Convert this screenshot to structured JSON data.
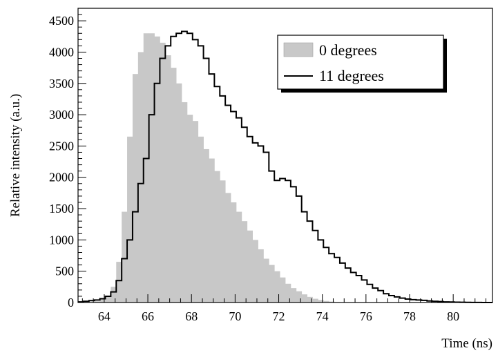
{
  "chart_data": {
    "type": "histogram",
    "xlabel": "Time (ns)",
    "ylabel": "Relative intensity (a.u.)",
    "xlim": [
      62.8,
      81.8
    ],
    "ylim": [
      0,
      4700
    ],
    "bin_width": 0.25,
    "x_ticks": [
      64,
      66,
      68,
      70,
      72,
      74,
      76,
      78,
      80
    ],
    "y_ticks": [
      0,
      500,
      1000,
      1500,
      2000,
      2500,
      3000,
      3500,
      4000,
      4500
    ],
    "legend": {
      "position": "top-right"
    },
    "series": [
      {
        "name": "0 degrees",
        "style": "filled",
        "color": "#c8c8c8",
        "bins_start": 62.8,
        "values": [
          0,
          0,
          0,
          20,
          50,
          90,
          250,
          650,
          1450,
          2650,
          3650,
          4000,
          4300,
          4300,
          4250,
          4150,
          3950,
          3750,
          3500,
          3200,
          3000,
          2900,
          2650,
          2450,
          2300,
          2100,
          1950,
          1750,
          1600,
          1450,
          1300,
          1150,
          1000,
          850,
          700,
          600,
          500,
          400,
          300,
          230,
          180,
          130,
          90,
          60,
          40,
          25,
          15,
          8,
          5,
          2,
          0,
          0,
          0,
          0,
          0,
          0,
          0,
          0,
          0,
          0,
          0,
          0,
          0,
          0,
          0,
          0,
          0,
          0,
          0,
          0,
          0,
          0,
          0,
          0,
          0,
          0
        ]
      },
      {
        "name": "11 degrees",
        "style": "step",
        "color": "#000000",
        "bins_start": 62.8,
        "values": [
          10,
          20,
          30,
          40,
          60,
          100,
          170,
          350,
          700,
          1000,
          1450,
          1900,
          2300,
          3000,
          3500,
          3900,
          4100,
          4250,
          4300,
          4330,
          4300,
          4200,
          4100,
          3900,
          3650,
          3450,
          3300,
          3150,
          3050,
          2950,
          2800,
          2650,
          2550,
          2500,
          2400,
          2100,
          1950,
          1980,
          1950,
          1850,
          1700,
          1450,
          1300,
          1150,
          1000,
          880,
          780,
          720,
          630,
          550,
          480,
          430,
          360,
          290,
          230,
          190,
          140,
          110,
          90,
          70,
          55,
          45,
          40,
          35,
          25,
          20,
          15,
          10,
          8,
          6,
          4,
          3,
          2,
          1,
          0,
          0
        ]
      }
    ]
  }
}
